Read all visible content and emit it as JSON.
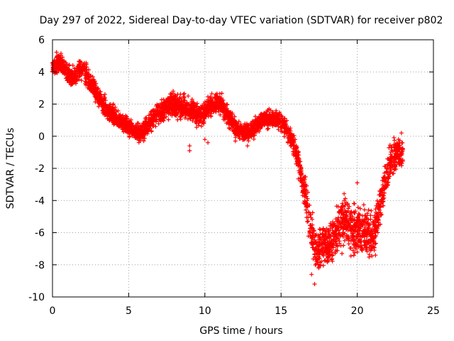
{
  "chart_data": {
    "type": "scatter",
    "title": "Day 297 of 2022, Sidereal Day-to-day VTEC variation (SDTVAR) for receiver p802",
    "xlabel": "GPS time / hours",
    "ylabel": "SDTVAR / TECUs",
    "xlim": [
      0,
      25
    ],
    "ylim": [
      -10,
      6
    ],
    "xticks": [
      0,
      5,
      10,
      15,
      20,
      25
    ],
    "yticks": [
      -10,
      -8,
      -6,
      -4,
      -2,
      0,
      2,
      4,
      6
    ],
    "xtick_labels": [
      "0",
      "5",
      "10",
      "15",
      "20",
      "25"
    ],
    "ytick_labels": [
      "-10",
      "-8",
      "-6",
      "-4",
      "-2",
      "0",
      "2",
      "4",
      "6"
    ],
    "grid": true,
    "marker": "+",
    "colors": {
      "series": "#ff0000",
      "grid": "#a0a0a0",
      "axis": "#000000"
    },
    "series": [
      {
        "name": "SDTVAR",
        "trend": [
          [
            0.0,
            4.2
          ],
          [
            0.3,
            4.6
          ],
          [
            0.6,
            4.5
          ],
          [
            0.9,
            4.0
          ],
          [
            1.2,
            3.6
          ],
          [
            1.5,
            3.7
          ],
          [
            1.8,
            4.2
          ],
          [
            2.1,
            4.0
          ],
          [
            2.4,
            3.5
          ],
          [
            2.7,
            3.0
          ],
          [
            3.0,
            2.5
          ],
          [
            3.3,
            2.0
          ],
          [
            3.6,
            1.6
          ],
          [
            3.9,
            1.3
          ],
          [
            4.2,
            1.1
          ],
          [
            4.5,
            0.9
          ],
          [
            4.8,
            0.7
          ],
          [
            5.1,
            0.5
          ],
          [
            5.4,
            0.3
          ],
          [
            5.7,
            0.2
          ],
          [
            6.0,
            0.3
          ],
          [
            6.3,
            0.7
          ],
          [
            6.6,
            1.1
          ],
          [
            6.9,
            1.4
          ],
          [
            7.2,
            1.6
          ],
          [
            7.5,
            1.8
          ],
          [
            7.8,
            1.9
          ],
          [
            8.1,
            1.9
          ],
          [
            8.4,
            1.8
          ],
          [
            8.7,
            1.9
          ],
          [
            9.0,
            1.7
          ],
          [
            9.3,
            1.5
          ],
          [
            9.6,
            1.3
          ],
          [
            9.9,
            1.4
          ],
          [
            10.2,
            1.8
          ],
          [
            10.5,
            2.0
          ],
          [
            10.8,
            2.1
          ],
          [
            11.1,
            1.9
          ],
          [
            11.4,
            1.4
          ],
          [
            11.7,
            1.0
          ],
          [
            12.0,
            0.6
          ],
          [
            12.3,
            0.3
          ],
          [
            12.6,
            0.2
          ],
          [
            12.9,
            0.3
          ],
          [
            13.2,
            0.5
          ],
          [
            13.5,
            0.8
          ],
          [
            13.8,
            1.0
          ],
          [
            14.1,
            1.1
          ],
          [
            14.4,
            1.1
          ],
          [
            14.7,
            1.0
          ],
          [
            15.0,
            0.9
          ],
          [
            15.3,
            0.6
          ],
          [
            15.6,
            0.0
          ],
          [
            15.9,
            -0.8
          ],
          [
            16.2,
            -1.8
          ],
          [
            16.5,
            -3.2
          ],
          [
            16.8,
            -5.0
          ],
          [
            17.1,
            -6.5
          ],
          [
            17.3,
            -7.3
          ],
          [
            17.5,
            -6.9
          ],
          [
            17.8,
            -6.5
          ],
          [
            18.1,
            -6.8
          ],
          [
            18.4,
            -6.3
          ],
          [
            18.7,
            -5.8
          ],
          [
            19.0,
            -5.3
          ],
          [
            19.3,
            -5.2
          ],
          [
            19.6,
            -5.7
          ],
          [
            19.9,
            -5.9
          ],
          [
            20.2,
            -5.6
          ],
          [
            20.5,
            -5.8
          ],
          [
            20.8,
            -6.3
          ],
          [
            21.0,
            -6.4
          ],
          [
            21.3,
            -5.2
          ],
          [
            21.6,
            -3.8
          ],
          [
            21.9,
            -2.5
          ],
          [
            22.2,
            -1.6
          ],
          [
            22.5,
            -1.1
          ],
          [
            22.8,
            -1.0
          ],
          [
            23.0,
            -1.2
          ]
        ],
        "spread": [
          [
            0.0,
            0.5
          ],
          [
            2.0,
            0.6
          ],
          [
            5.0,
            0.5
          ],
          [
            8.0,
            0.7
          ],
          [
            10.0,
            0.6
          ],
          [
            12.0,
            0.5
          ],
          [
            15.0,
            0.5
          ],
          [
            16.0,
            0.7
          ],
          [
            17.0,
            1.2
          ],
          [
            19.0,
            1.4
          ],
          [
            21.0,
            1.3
          ],
          [
            23.0,
            0.8
          ]
        ],
        "outliers": [
          [
            8.6,
            2.6
          ],
          [
            8.9,
            2.5
          ],
          [
            9.0,
            -0.6
          ],
          [
            9.0,
            -0.9
          ],
          [
            10.2,
            -0.4
          ],
          [
            10.0,
            -0.2
          ],
          [
            20.0,
            -2.9
          ],
          [
            17.2,
            -9.2
          ],
          [
            17.0,
            -8.6
          ],
          [
            22.9,
            0.2
          ],
          [
            0.4,
            5.0
          ],
          [
            4.0,
            2.0
          ],
          [
            11.6,
            0.5
          ],
          [
            12.0,
            -0.3
          ],
          [
            12.8,
            -0.6
          ],
          [
            19.0,
            -7.3
          ],
          [
            21.2,
            -7.4
          ],
          [
            16.0,
            -0.6
          ]
        ],
        "density_per_hour": 170,
        "seed": 297
      }
    ]
  }
}
